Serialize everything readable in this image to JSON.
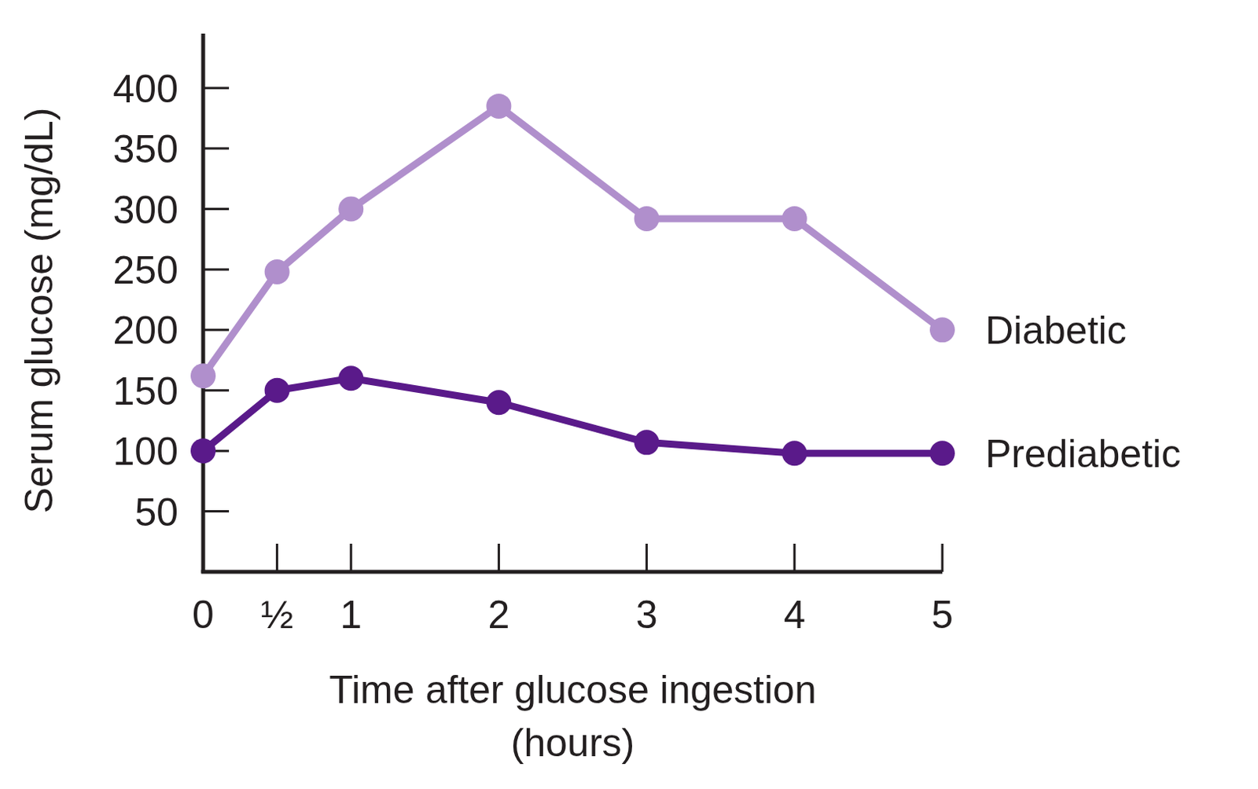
{
  "chart_data": {
    "type": "line",
    "x_label": [
      "Time after glucose ingestion",
      "(hours)"
    ],
    "y_label": "Serum glucose (mg/dL)",
    "x": [
      0,
      0.5,
      1,
      2,
      3,
      4,
      5
    ],
    "xlim": [
      0,
      5
    ],
    "xticks": [
      0,
      {
        "value": 0.5,
        "label": "½"
      },
      1,
      2,
      3,
      4,
      5
    ],
    "ylim": [
      0,
      445
    ],
    "yticks": [
      50,
      100,
      150,
      200,
      250,
      300,
      350,
      400
    ],
    "grid": false,
    "series": [
      {
        "name": "Diabetic",
        "color": "#b08fcc",
        "marker": "circle",
        "values": [
          162,
          248,
          300,
          385,
          292,
          292,
          200
        ]
      },
      {
        "name": "Prediabetic",
        "color": "#5a1a8a",
        "marker": "circle",
        "values": [
          100,
          150,
          160,
          140,
          107,
          98,
          98
        ]
      }
    ]
  }
}
